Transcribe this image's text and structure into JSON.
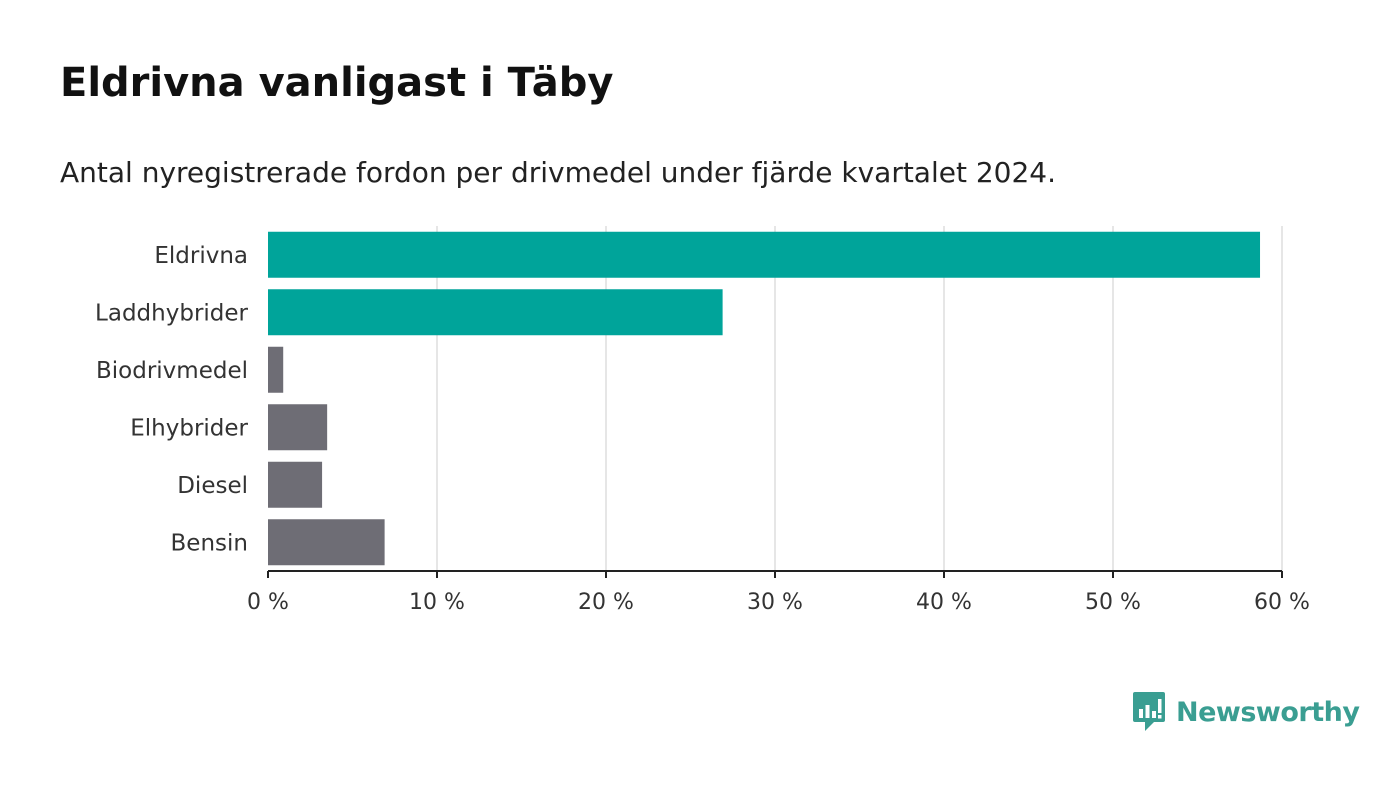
{
  "title": "Eldrivna vanligast i Täby",
  "subtitle": "Antal nyregistrerade fordon per drivmedel under fjärde kvartalet 2024.",
  "brand": {
    "name": "Newsworthy",
    "icon": "newsworthy-logo-icon",
    "color": "#3a9e92"
  },
  "colors": {
    "highlight": "#00a49a",
    "muted": "#6e6d75",
    "grid": "#dddddd",
    "axis": "#222222"
  },
  "chart_data": {
    "type": "bar",
    "orientation": "horizontal",
    "categories": [
      "Eldrivna",
      "Laddhybrider",
      "Biodrivmedel",
      "Elhybrider",
      "Diesel",
      "Bensin"
    ],
    "values": [
      58.7,
      26.9,
      0.9,
      3.5,
      3.2,
      6.9
    ],
    "highlighted": [
      true,
      true,
      false,
      false,
      false,
      false
    ],
    "unit": "%",
    "xlim": [
      0,
      60
    ],
    "xticks": [
      0,
      10,
      20,
      30,
      40,
      50,
      60
    ],
    "xtick_labels": [
      "0 %",
      "10 %",
      "20 %",
      "30 %",
      "40 %",
      "50 %",
      "60 %"
    ],
    "grid": "vertical"
  }
}
